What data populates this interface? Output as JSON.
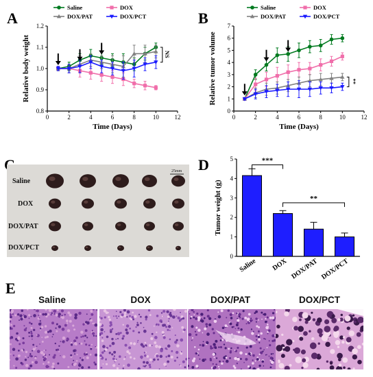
{
  "panels": {
    "a": "A",
    "b": "B",
    "c": "C",
    "d": "D",
    "e": "E"
  },
  "colors": {
    "saline": "#007a1f",
    "dox": "#f06eaa",
    "dox_pat": "#808080",
    "dox_pct": "#1a1aff",
    "bar": "#1e1eff"
  },
  "legend": [
    "Saline",
    "DOX",
    "DOX/PAT",
    "DOX/PCT"
  ],
  "chart_data": [
    {
      "id": "A",
      "type": "line",
      "xlabel": "Time (Days)",
      "ylabel": "Relative body weight",
      "xlim": [
        0,
        12
      ],
      "ylim": [
        0.8,
        1.2
      ],
      "xticks": [
        "0",
        "2",
        "4",
        "6",
        "8",
        "10",
        "12"
      ],
      "yticks": [
        "0.8",
        "0.9",
        "1.0",
        "1.1",
        "1.2"
      ],
      "x": [
        1,
        2,
        3,
        4,
        5,
        6,
        7,
        8,
        9,
        10
      ],
      "series": [
        {
          "name": "Saline",
          "values": [
            1.0,
            1.01,
            1.04,
            1.06,
            1.05,
            1.04,
            1.03,
            1.02,
            1.07,
            1.1
          ],
          "err": [
            0.01,
            0.02,
            0.03,
            0.03,
            0.03,
            0.03,
            0.04,
            0.03,
            0.03,
            0.02
          ]
        },
        {
          "name": "DOX",
          "values": [
            1.0,
            1.0,
            0.99,
            0.98,
            0.97,
            0.96,
            0.95,
            0.93,
            0.92,
            0.91
          ],
          "err": [
            0.01,
            0.02,
            0.03,
            0.03,
            0.03,
            0.03,
            0.03,
            0.02,
            0.02,
            0.01
          ]
        },
        {
          "name": "DOX/PAT",
          "values": [
            1.0,
            1.0,
            1.02,
            1.04,
            1.03,
            1.02,
            1.01,
            1.07,
            1.07,
            1.08
          ],
          "err": [
            0.01,
            0.02,
            0.04,
            0.03,
            0.03,
            0.04,
            0.05,
            0.04,
            0.04,
            0.03
          ]
        },
        {
          "name": "DOX/PCT",
          "values": [
            1.0,
            1.0,
            1.01,
            1.03,
            1.01,
            1.0,
            0.99,
            1.0,
            1.02,
            1.03
          ],
          "err": [
            0.01,
            0.02,
            0.03,
            0.03,
            0.03,
            0.03,
            0.04,
            0.04,
            0.03,
            0.03
          ]
        }
      ],
      "arrows_at_days": [
        1,
        3,
        5
      ],
      "significance": "NS"
    },
    {
      "id": "B",
      "type": "line",
      "xlabel": "Time (Days)",
      "ylabel": "Relative tumor volume",
      "xlim": [
        0,
        12
      ],
      "ylim": [
        0,
        7
      ],
      "xticks": [
        "0",
        "2",
        "4",
        "6",
        "8",
        "10",
        "12"
      ],
      "yticks": [
        "0",
        "1",
        "2",
        "3",
        "4",
        "5",
        "6",
        "7"
      ],
      "x": [
        1,
        2,
        3,
        4,
        5,
        6,
        7,
        8,
        9,
        10
      ],
      "series": [
        {
          "name": "Saline",
          "values": [
            1.0,
            3.0,
            3.8,
            4.6,
            4.7,
            5.0,
            5.3,
            5.4,
            5.9,
            6.0
          ],
          "err": [
            0.1,
            0.4,
            0.5,
            0.6,
            0.6,
            0.6,
            0.5,
            0.5,
            0.4,
            0.3
          ]
        },
        {
          "name": "DOX",
          "values": [
            1.0,
            2.2,
            2.6,
            2.9,
            3.2,
            3.4,
            3.5,
            3.8,
            4.1,
            4.5
          ],
          "err": [
            0.1,
            0.5,
            0.6,
            0.7,
            0.6,
            0.6,
            0.5,
            0.5,
            0.4,
            0.3
          ]
        },
        {
          "name": "DOX/PAT",
          "values": [
            1.0,
            1.5,
            1.8,
            1.9,
            2.1,
            2.3,
            2.5,
            2.6,
            2.7,
            2.8
          ],
          "err": [
            0.1,
            0.4,
            0.5,
            0.5,
            0.5,
            0.5,
            0.5,
            0.5,
            0.4,
            0.3
          ]
        },
        {
          "name": "DOX/PCT",
          "values": [
            1.0,
            1.4,
            1.6,
            1.7,
            1.8,
            1.8,
            1.8,
            1.9,
            1.9,
            2.0
          ],
          "err": [
            0.1,
            0.4,
            0.5,
            0.5,
            0.6,
            0.7,
            0.6,
            0.5,
            0.4,
            0.3
          ]
        }
      ],
      "arrows_at_days": [
        1,
        3,
        5
      ],
      "significance": "**"
    },
    {
      "id": "D",
      "type": "bar",
      "ylabel": "Tumor weight (g)",
      "ylim": [
        0,
        5
      ],
      "yticks": [
        "0",
        "1",
        "2",
        "3",
        "4",
        "5"
      ],
      "categories": [
        "Saline",
        "DOX",
        "DOX/PAT",
        "DOX/PCT"
      ],
      "values": [
        4.15,
        2.2,
        1.4,
        1.0
      ],
      "err": [
        0.35,
        0.15,
        0.35,
        0.2
      ],
      "significance": [
        {
          "from": 0,
          "to": 1,
          "label": "***"
        },
        {
          "from": 1,
          "to": 3,
          "label": "**"
        }
      ]
    }
  ],
  "photo": {
    "scale_label": "25mm",
    "rows": [
      "Saline",
      "DOX",
      "DOX/PAT",
      "DOX/PCT"
    ]
  },
  "histology": [
    "Saline",
    "DOX",
    "DOX/PAT",
    "DOX/PCT"
  ]
}
